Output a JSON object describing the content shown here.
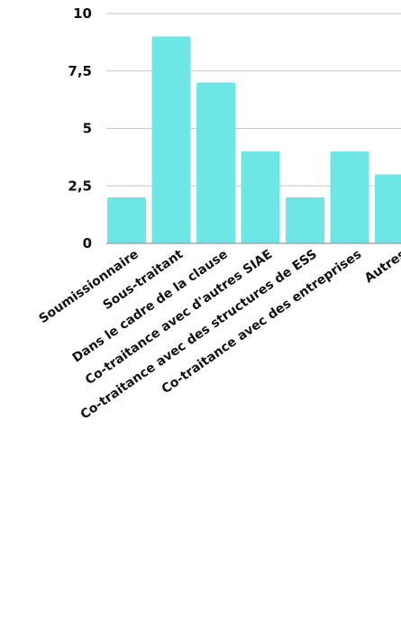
{
  "chart_data": {
    "type": "bar",
    "title": "",
    "xlabel": "",
    "ylabel": "",
    "categories": [
      "Soumissionnaire",
      "Sous-traitant",
      "Dans le cadre de la clause",
      "Co-traitance avec d'autres SIAE",
      "Co-traitance avec des structures de ESS",
      "Co-traitance avec des entreprises",
      "Autres"
    ],
    "values": [
      2,
      9,
      7,
      4,
      2,
      4,
      3
    ],
    "ylim": [
      0,
      10
    ],
    "yticks": [
      0,
      2.5,
      5,
      7.5,
      10
    ],
    "ytick_labels": [
      "0",
      "2,5",
      "5",
      "7,5",
      "10"
    ],
    "grid": true,
    "legend": "none",
    "bar_color": "#6ee6e6"
  }
}
